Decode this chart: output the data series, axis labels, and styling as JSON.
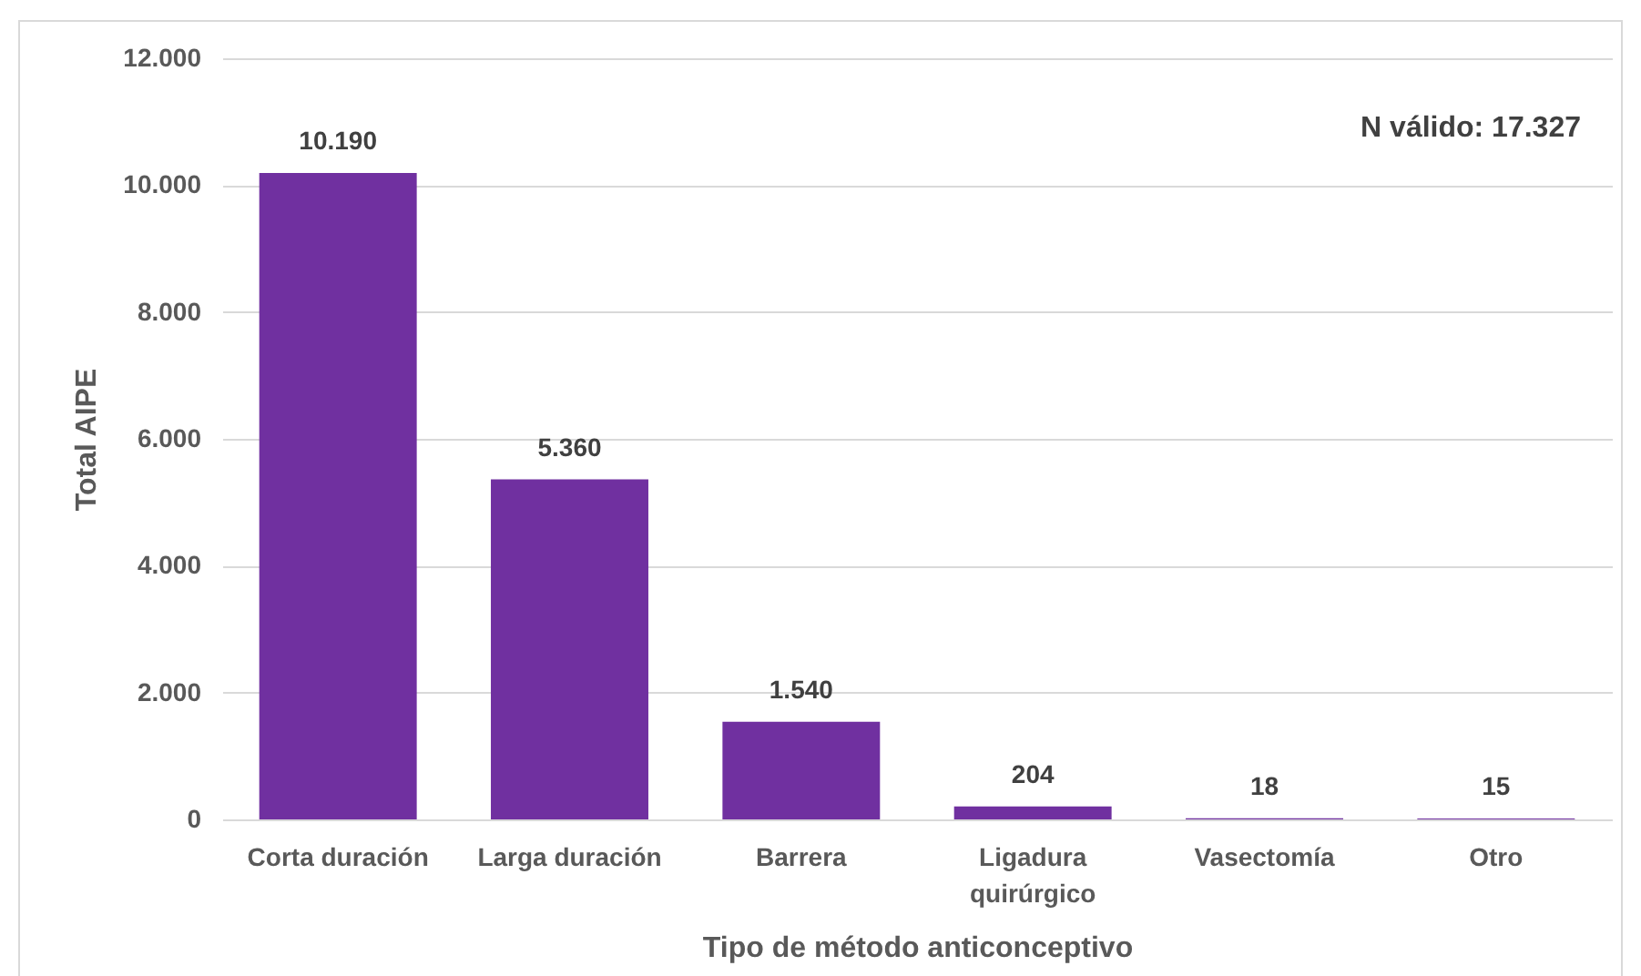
{
  "chart_data": {
    "type": "bar",
    "xlabel": "Tipo de método anticonceptivo",
    "ylabel": "Total AIPE",
    "categories": [
      "Corta duración",
      "Larga duración",
      "Barrera",
      "Ligadura quirúrgico",
      "Vasectomía",
      "Otro"
    ],
    "values": [
      10190,
      5360,
      1540,
      204,
      18,
      15
    ],
    "color": "#7030a0",
    "value_labels": [
      "10.190",
      "5.360",
      "1.540",
      "204",
      "18",
      "15"
    ],
    "ylim": [
      0,
      12000
    ],
    "yticks": [
      0,
      {
        "value": 2000,
        "label": "2.000"
      },
      {
        "value": 4000,
        "label": "4.000"
      },
      {
        "value": 6000,
        "label": "6.000"
      },
      {
        "value": 8000,
        "label": "8.000"
      },
      {
        "value": 10000,
        "label": "10.000"
      },
      {
        "value": 12000,
        "label": "12.000"
      }
    ],
    "grid": "y",
    "annotations": [
      "N válido: 17.327"
    ]
  }
}
